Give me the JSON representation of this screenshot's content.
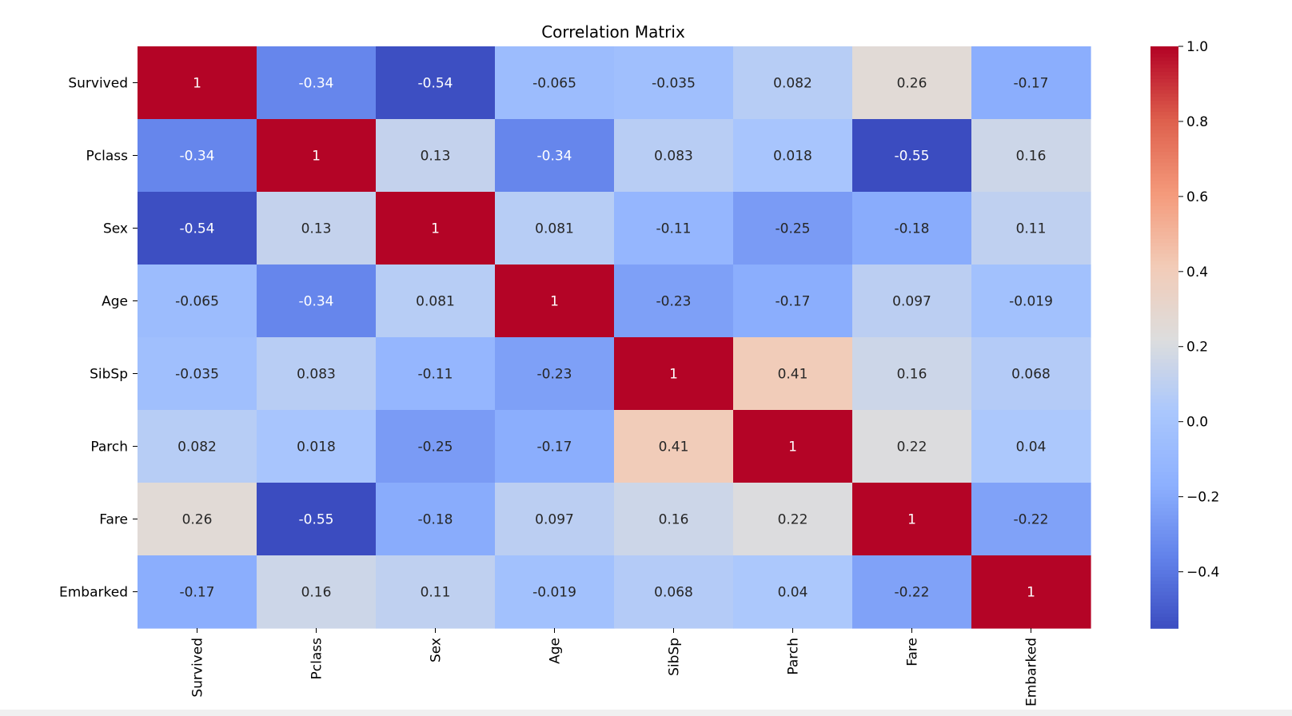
{
  "chart_data": {
    "type": "heatmap",
    "title": "Correlation Matrix",
    "xlabel": "",
    "ylabel": "",
    "colormap": "coolwarm",
    "variables": [
      "Survived",
      "Pclass",
      "Sex",
      "Age",
      "SibSp",
      "Parch",
      "Fare",
      "Embarked"
    ],
    "matrix": [
      [
        1,
        -0.34,
        -0.54,
        -0.065,
        -0.035,
        0.082,
        0.26,
        -0.17
      ],
      [
        -0.34,
        1,
        0.13,
        -0.34,
        0.083,
        0.018,
        -0.55,
        0.16
      ],
      [
        -0.54,
        0.13,
        1,
        0.081,
        -0.11,
        -0.25,
        -0.18,
        0.11
      ],
      [
        -0.065,
        -0.34,
        0.081,
        1,
        -0.23,
        -0.17,
        0.097,
        -0.019
      ],
      [
        -0.035,
        0.083,
        -0.11,
        -0.23,
        1,
        0.41,
        0.16,
        0.068
      ],
      [
        0.082,
        0.018,
        -0.25,
        -0.17,
        0.41,
        1,
        0.22,
        0.04
      ],
      [
        0.26,
        -0.55,
        -0.18,
        0.097,
        0.16,
        0.22,
        1,
        -0.22
      ],
      [
        -0.17,
        0.16,
        0.11,
        -0.019,
        0.068,
        0.04,
        -0.22,
        1
      ]
    ],
    "colorbar": {
      "range": [
        -0.55,
        1.0
      ],
      "ticks": [
        1.0,
        0.8,
        0.6,
        0.4,
        0.2,
        0.0,
        -0.2,
        -0.4
      ],
      "tick_labels": [
        "1.0",
        "0.8",
        "0.6",
        "0.4",
        "0.2",
        "0.0",
        "−0.2",
        "−0.4"
      ]
    },
    "colors": {
      "low": "#3b4cc0",
      "mid": "#dddddd",
      "high": "#b40426"
    }
  }
}
